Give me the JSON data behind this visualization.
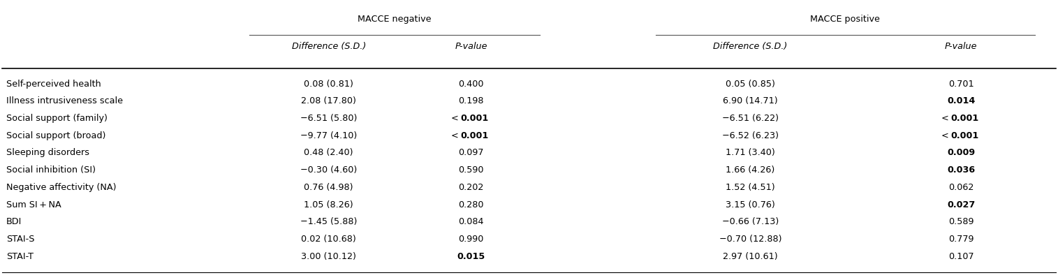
{
  "figsize": [
    15.15,
    4.01
  ],
  "dpi": 100,
  "bg_color": "#ffffff",
  "text_color": "#000000",
  "header_fontsize": 9.2,
  "body_fontsize": 9.2,
  "row_labels": [
    "Self-perceived health",
    "Illness intrusiveness scale",
    "Social support (family)",
    "Social support (broad)",
    "Sleeping disorders",
    "Social inhibition (SI)",
    "Negative affectivity (NA)",
    "Sum SI + NA",
    "BDI",
    "STAI-S",
    "STAI-T"
  ],
  "neg_diff": [
    "0.08 (0.81)",
    "2.08 (17.80)",
    "−6.51 (5.80)",
    "−9.77 (4.10)",
    "0.48 (2.40)",
    "−0.30 (4.60)",
    "0.76 (4.98)",
    "1.05 (8.26)",
    "−1.45 (5.88)",
    "0.02 (10.68)",
    "3.00 (10.12)"
  ],
  "neg_pval": [
    "0.400",
    "0.198",
    "<0.001",
    "<0.001",
    "0.097",
    "0.590",
    "0.202",
    "0.280",
    "0.084",
    "0.990",
    "0.015"
  ],
  "neg_pval_bold": [
    false,
    false,
    true,
    true,
    false,
    false,
    false,
    false,
    false,
    false,
    true
  ],
  "neg_pval_lt": [
    false,
    false,
    true,
    true,
    false,
    false,
    false,
    false,
    false,
    false,
    false
  ],
  "pos_diff": [
    "0.05 (0.85)",
    "6.90 (14.71)",
    "−6.51 (6.22)",
    "−6.52 (6.23)",
    "1.71 (3.40)",
    "1.66 (4.26)",
    "1.52 (4.51)",
    "3.15 (0.76)",
    "−0.66 (7.13)",
    "−0.70 (12.88)",
    "2.97 (10.61)"
  ],
  "pos_pval": [
    "0.701",
    "0.014",
    "<0.001",
    "<0.001",
    "0.009",
    "0.036",
    "0.062",
    "0.027",
    "0.589",
    "0.779",
    "0.107"
  ],
  "pos_pval_bold": [
    false,
    true,
    true,
    true,
    true,
    true,
    false,
    true,
    false,
    false,
    false
  ],
  "pos_pval_lt": [
    false,
    false,
    true,
    true,
    false,
    false,
    false,
    false,
    false,
    false,
    false
  ]
}
